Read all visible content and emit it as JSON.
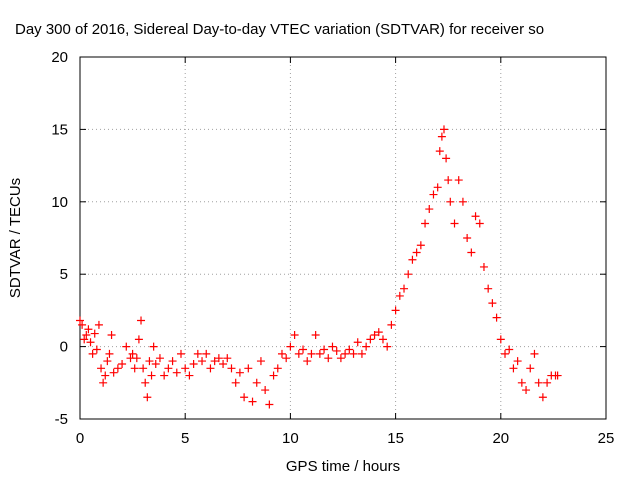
{
  "chart_data": {
    "type": "scatter",
    "title": "Day 300 of 2016, Sidereal Day-to-day VTEC variation (SDTVAR) for receiver so",
    "xlabel": "GPS time / hours",
    "ylabel": "SDTVAR / TECUs",
    "xlim": [
      0,
      25
    ],
    "ylim": [
      -5,
      20
    ],
    "xticks": [
      0,
      5,
      10,
      15,
      20,
      25
    ],
    "yticks": [
      -5,
      0,
      5,
      10,
      15,
      20
    ],
    "grid": true,
    "marker": "plus",
    "color": "#ff0000",
    "series": [
      {
        "name": "SDTVAR",
        "x": [
          0.0,
          0.1,
          0.2,
          0.3,
          0.4,
          0.5,
          0.6,
          0.7,
          0.8,
          0.9,
          1.0,
          1.1,
          1.2,
          1.3,
          1.4,
          1.5,
          1.6,
          1.8,
          2.0,
          2.2,
          2.4,
          2.5,
          2.6,
          2.7,
          2.8,
          2.9,
          3.0,
          3.1,
          3.2,
          3.3,
          3.4,
          3.5,
          3.6,
          3.8,
          4.0,
          4.2,
          4.4,
          4.6,
          4.8,
          5.0,
          5.2,
          5.4,
          5.6,
          5.8,
          6.0,
          6.2,
          6.4,
          6.6,
          6.8,
          7.0,
          7.2,
          7.4,
          7.6,
          7.8,
          8.0,
          8.2,
          8.4,
          8.6,
          8.8,
          9.0,
          9.2,
          9.4,
          9.6,
          9.8,
          10.0,
          10.2,
          10.4,
          10.6,
          10.8,
          11.0,
          11.2,
          11.4,
          11.6,
          11.8,
          12.0,
          12.2,
          12.4,
          12.6,
          12.8,
          13.0,
          13.2,
          13.4,
          13.6,
          13.8,
          14.0,
          14.2,
          14.4,
          14.6,
          14.8,
          15.0,
          15.2,
          15.4,
          15.6,
          15.8,
          16.0,
          16.2,
          16.4,
          16.6,
          16.8,
          17.0,
          17.1,
          17.2,
          17.3,
          17.4,
          17.5,
          17.6,
          17.8,
          18.0,
          18.2,
          18.4,
          18.6,
          18.8,
          19.0,
          19.2,
          19.4,
          19.6,
          19.8,
          20.0,
          20.2,
          20.4,
          20.6,
          20.8,
          21.0,
          21.2,
          21.4,
          21.6,
          21.8,
          22.0,
          22.2,
          22.4,
          22.6,
          22.7
        ],
        "y": [
          1.8,
          1.5,
          0.5,
          0.8,
          1.2,
          0.3,
          -0.5,
          0.9,
          -0.2,
          1.5,
          -1.5,
          -2.5,
          -2.0,
          -1.0,
          -0.5,
          0.8,
          -1.8,
          -1.5,
          -1.2,
          0.0,
          -0.8,
          -0.5,
          -1.5,
          -0.8,
          0.5,
          1.8,
          -1.5,
          -2.5,
          -3.5,
          -1.0,
          -2.0,
          0.0,
          -1.2,
          -0.8,
          -2.0,
          -1.5,
          -1.0,
          -1.8,
          -0.5,
          -1.5,
          -2.0,
          -1.2,
          -0.5,
          -1.0,
          -0.5,
          -1.5,
          -1.0,
          -0.8,
          -1.2,
          -0.8,
          -1.5,
          -2.5,
          -1.8,
          -3.5,
          -1.5,
          -3.8,
          -2.5,
          -1.0,
          -3.0,
          -4.0,
          -2.0,
          -1.5,
          -0.5,
          -0.8,
          0.0,
          0.8,
          -0.5,
          -0.2,
          -1.0,
          -0.5,
          0.8,
          -0.5,
          -0.2,
          -0.8,
          0.0,
          -0.3,
          -0.8,
          -0.5,
          -0.2,
          -0.5,
          0.3,
          -0.5,
          0.0,
          0.5,
          0.8,
          1.0,
          0.5,
          0.0,
          1.5,
          2.5,
          3.5,
          4.0,
          5.0,
          6.0,
          6.5,
          7.0,
          8.5,
          9.5,
          10.5,
          11.0,
          13.5,
          14.5,
          15.0,
          13.0,
          11.5,
          10.0,
          8.5,
          11.5,
          10.0,
          7.5,
          6.5,
          9.0,
          8.5,
          5.5,
          4.0,
          3.0,
          2.0,
          0.5,
          -0.5,
          -0.2,
          -1.5,
          -1.0,
          -2.5,
          -3.0,
          -1.5,
          -0.5,
          -2.5,
          -3.5,
          -2.5,
          -2.0,
          -2.0,
          -2.0
        ]
      }
    ]
  }
}
